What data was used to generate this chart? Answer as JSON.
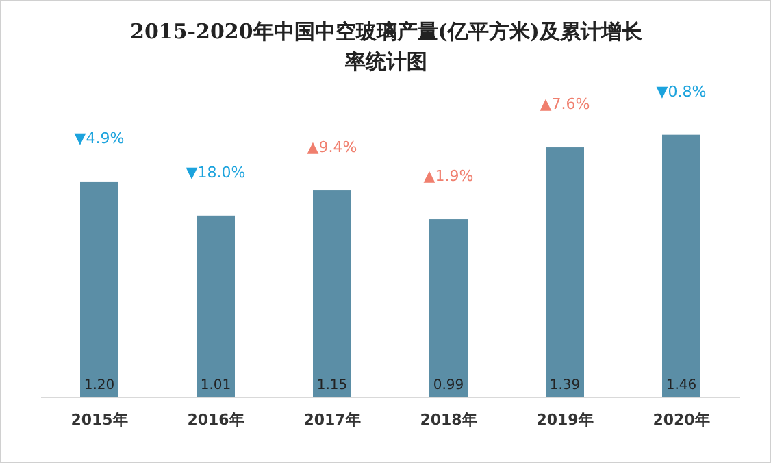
{
  "chart_data": {
    "type": "bar",
    "title": "2015-2020年中国中空玻璃产量(亿平方米)及累计增长率统计图",
    "categories": [
      "2015年",
      "2016年",
      "2017年",
      "2018年",
      "2019年",
      "2020年"
    ],
    "values": [
      1.2,
      1.01,
      1.15,
      0.99,
      1.39,
      1.46
    ],
    "value_labels": [
      "1.20",
      "1.01",
      "1.15",
      "0.99",
      "1.39",
      "1.46"
    ],
    "color": "#5b8ea6",
    "annotations": [
      {
        "text": "▼4.9%",
        "x": "2015年",
        "y": 1.2
      },
      {
        "text": "▼18.0%",
        "x": "2016年",
        "y": 1.01
      },
      {
        "text": "▲9.4%",
        "x": "2017年",
        "y": 1.15
      },
      {
        "text": "▲1.9%",
        "x": "2018年",
        "y": 0.99
      },
      {
        "text": "▲7.6%",
        "x": "2019年",
        "y": 1.39
      },
      {
        "text": "▼0.8%",
        "x": "2020年",
        "y": 1.46
      }
    ]
  }
}
